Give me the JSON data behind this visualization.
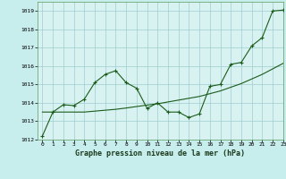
{
  "xlabel": "Graphe pression niveau de la mer (hPa)",
  "bg_color": "#c8eded",
  "plot_bg_color": "#d8f2f2",
  "grid_color": "#9ecece",
  "line_color": "#1a5c1a",
  "xlim": [
    -0.5,
    23
  ],
  "ylim": [
    1012,
    1019.5
  ],
  "yticks": [
    1012,
    1013,
    1014,
    1015,
    1016,
    1017,
    1018,
    1019
  ],
  "xticks": [
    0,
    1,
    2,
    3,
    4,
    5,
    6,
    7,
    8,
    9,
    10,
    11,
    12,
    13,
    14,
    15,
    16,
    17,
    18,
    19,
    20,
    21,
    22,
    23
  ],
  "line1_x": [
    0,
    1,
    2,
    3,
    4,
    5,
    6,
    7,
    8,
    9,
    10,
    11,
    12,
    13,
    14,
    15,
    16,
    17,
    18,
    19,
    20,
    21,
    22,
    23
  ],
  "line1_y": [
    1012.2,
    1013.5,
    1013.9,
    1013.85,
    1014.2,
    1015.1,
    1015.55,
    1015.75,
    1015.1,
    1014.8,
    1013.7,
    1014.0,
    1013.5,
    1013.5,
    1013.2,
    1013.4,
    1014.9,
    1015.0,
    1016.1,
    1016.2,
    1017.1,
    1017.55,
    1019.0,
    1019.05
  ],
  "line2_x": [
    0,
    1,
    2,
    3,
    4,
    5,
    6,
    7,
    8,
    9,
    10,
    11,
    12,
    13,
    14,
    15,
    16,
    17,
    18,
    19,
    20,
    21,
    22,
    23
  ],
  "line2_y": [
    1013.5,
    1013.5,
    1013.5,
    1013.5,
    1013.5,
    1013.55,
    1013.6,
    1013.65,
    1013.72,
    1013.8,
    1013.88,
    1013.95,
    1014.05,
    1014.15,
    1014.25,
    1014.35,
    1014.5,
    1014.65,
    1014.85,
    1015.05,
    1015.3,
    1015.55,
    1015.85,
    1016.15
  ]
}
